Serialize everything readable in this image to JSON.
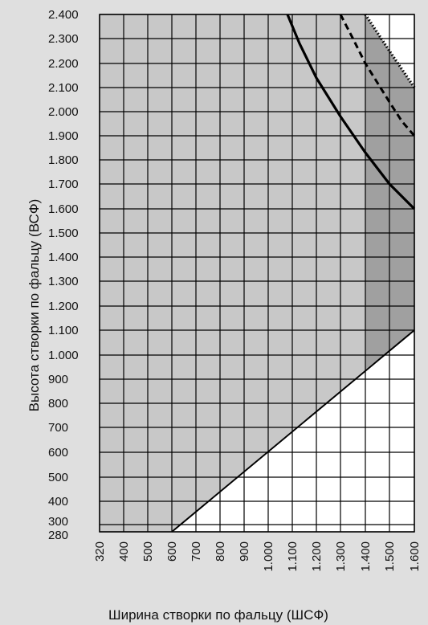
{
  "chart_data": {
    "type": "area",
    "title": "",
    "xlabel": "Ширина створки по фальцу (ШСФ)",
    "ylabel": "Высота створки по фальцу (ВСФ)",
    "xlim": [
      320,
      1600
    ],
    "ylim": [
      280,
      2400
    ],
    "x_ticks": [
      320,
      400,
      500,
      600,
      700,
      800,
      900,
      1000,
      1100,
      1200,
      1300,
      1400,
      1500,
      1600
    ],
    "x_tick_labels": [
      "320",
      "400",
      "500",
      "600",
      "700",
      "800",
      "900",
      "1.000",
      "1.100",
      "1.200",
      "1.300",
      "1.400",
      "1.500",
      "1.600"
    ],
    "y_ticks": [
      280,
      300,
      400,
      500,
      600,
      700,
      800,
      900,
      1000,
      1100,
      1200,
      1300,
      1400,
      1500,
      1600,
      1700,
      1800,
      1900,
      2000,
      2100,
      2200,
      2300,
      2400
    ],
    "y_tick_labels": [
      "280",
      "300",
      "400",
      "500",
      "600",
      "700",
      "800",
      "900",
      "1.000",
      "1.100",
      "1.200",
      "1.300",
      "1.400",
      "1.500",
      "1.600",
      "1.700",
      "1.800",
      "1.900",
      "2.000",
      "2.100",
      "2.200",
      "2.300",
      "2.400"
    ],
    "grid": true,
    "colors": {
      "background": "#dfdfdf",
      "light_region": "#c8c8c8",
      "dark_region": "#a0a0a0",
      "outside": "#ffffff",
      "line": "#000000"
    },
    "regions": [
      {
        "shade": "light",
        "boundary": [
          [
            320,
            2400
          ],
          [
            1300,
            2400
          ],
          [
            1400,
            2400
          ],
          [
            1400,
            940
          ],
          [
            600,
            280
          ],
          [
            320,
            280
          ]
        ]
      },
      {
        "shade": "dark",
        "boundary": [
          [
            1400,
            2400
          ],
          [
            1600,
            2100
          ],
          [
            1600,
            1100
          ],
          [
            1400,
            940
          ]
        ]
      }
    ],
    "series": [
      {
        "style": "solid",
        "x": [
          1080,
          1130,
          1200,
          1300,
          1400,
          1500,
          1600
        ],
        "y": [
          2400,
          2280,
          2140,
          1980,
          1830,
          1700,
          1600
        ]
      },
      {
        "style": "dashed",
        "x": [
          1300,
          1350,
          1400,
          1450,
          1500,
          1550,
          1600
        ],
        "y": [
          2400,
          2300,
          2200,
          2120,
          2040,
          1960,
          1900
        ]
      },
      {
        "style": "dotted",
        "x": [
          1400,
          1500,
          1600
        ],
        "y": [
          2400,
          2250,
          2100
        ]
      },
      {
        "style": "solid",
        "x": [
          600,
          1600
        ],
        "y": [
          280,
          1100
        ]
      }
    ]
  }
}
